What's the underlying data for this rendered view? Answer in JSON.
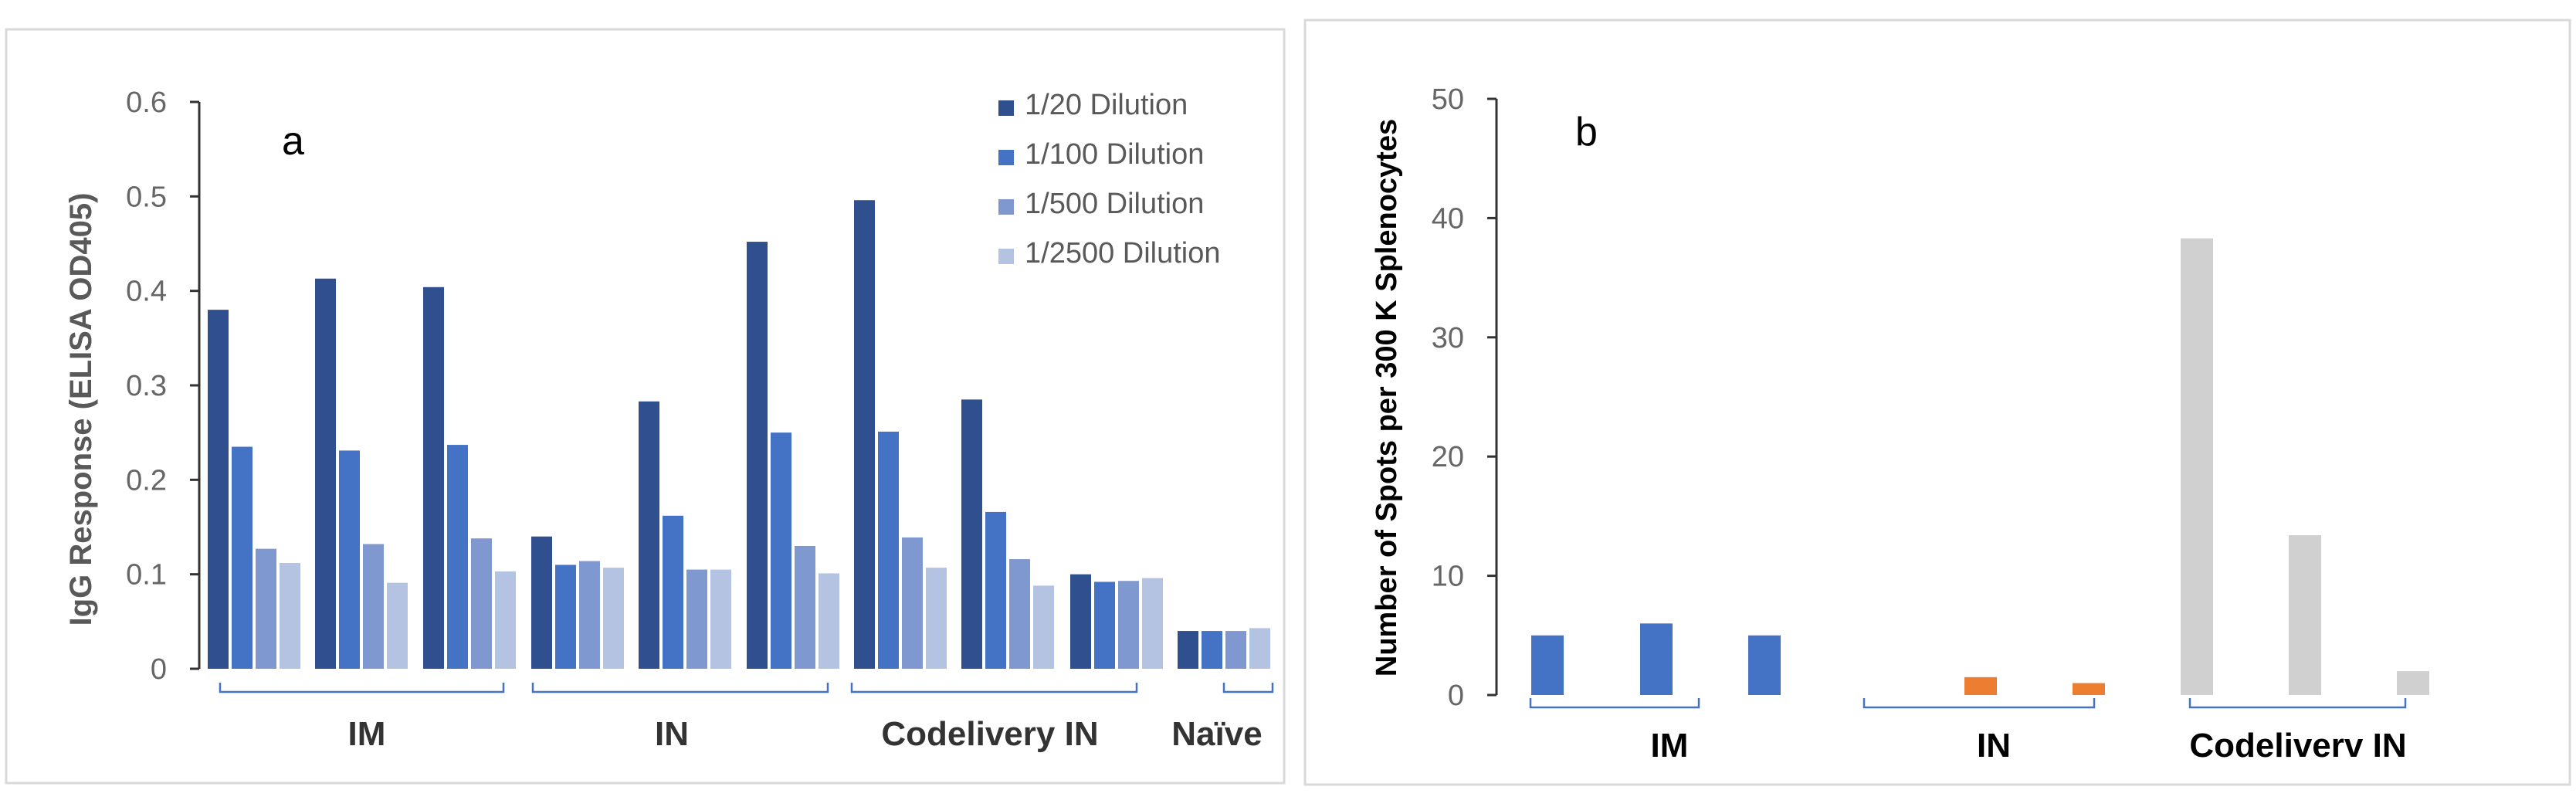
{
  "chart_data": [
    {
      "type": "bar",
      "panel": "a",
      "ylabel": "IgG Response (ELISA OD405)",
      "ylim": [
        0,
        0.6
      ],
      "yticks": [
        "0",
        "0.1",
        "0.2",
        "0.3",
        "0.4",
        "0.5",
        "0.6"
      ],
      "grid": false,
      "legend_position": "top-right",
      "series": [
        {
          "name": "1/20 Dilution",
          "color": "#2F4F8F"
        },
        {
          "name": "1/100 Dilution",
          "color": "#4472C4"
        },
        {
          "name": "1/500 Dilution",
          "color": "#7F98CF"
        },
        {
          "name": "1/2500 Dilution",
          "color": "#B4C3E2"
        }
      ],
      "subjects": [
        {
          "group": 0,
          "values": [
            0.38,
            0.235,
            0.127,
            0.112
          ]
        },
        {
          "group": 0,
          "values": [
            0.413,
            0.231,
            0.132,
            0.091
          ]
        },
        {
          "group": 0,
          "values": [
            0.404,
            0.237,
            0.138,
            0.103
          ]
        },
        {
          "group": 1,
          "values": [
            0.14,
            0.11,
            0.114,
            0.107
          ]
        },
        {
          "group": 1,
          "values": [
            0.283,
            0.162,
            0.105,
            0.105
          ]
        },
        {
          "group": 1,
          "values": [
            0.452,
            0.25,
            0.13,
            0.101
          ]
        },
        {
          "group": 2,
          "values": [
            0.496,
            0.251,
            0.139,
            0.107
          ]
        },
        {
          "group": 2,
          "values": [
            0.285,
            0.166,
            0.116,
            0.088
          ]
        },
        {
          "group": 2,
          "values": [
            0.1,
            0.092,
            0.093,
            0.096
          ]
        },
        {
          "group": 3,
          "values": [
            0.04,
            0.04,
            0.04,
            0.043
          ]
        }
      ],
      "groups": [
        "IM",
        "IN",
        "Codelivery IN",
        "Naïve"
      ]
    },
    {
      "type": "bar",
      "panel": "b",
      "ylabel": "Number of Spots per 300 K Splenocytes",
      "ylim": [
        0,
        50
      ],
      "yticks": [
        "0",
        "10",
        "20",
        "30",
        "40",
        "50"
      ],
      "grid": false,
      "bars": [
        {
          "group": 0,
          "value": 5,
          "color": "#4472C4"
        },
        {
          "group": 0,
          "value": 6,
          "color": "#4472C4"
        },
        {
          "group": 0,
          "value": 5,
          "color": "#4472C4"
        },
        {
          "group": 1,
          "value": 0,
          "color": "#ED7D31"
        },
        {
          "group": 1,
          "value": 1.5,
          "color": "#ED7D31"
        },
        {
          "group": 1,
          "value": 1,
          "color": "#ED7D31"
        },
        {
          "group": 2,
          "value": 38.3,
          "color": "#D0D0D0"
        },
        {
          "group": 2,
          "value": 13.4,
          "color": "#D0D0D0"
        },
        {
          "group": 2,
          "value": 2,
          "color": "#D0D0D0"
        }
      ],
      "groups": [
        "IM",
        "IN",
        "Codeliverv IN"
      ]
    }
  ]
}
